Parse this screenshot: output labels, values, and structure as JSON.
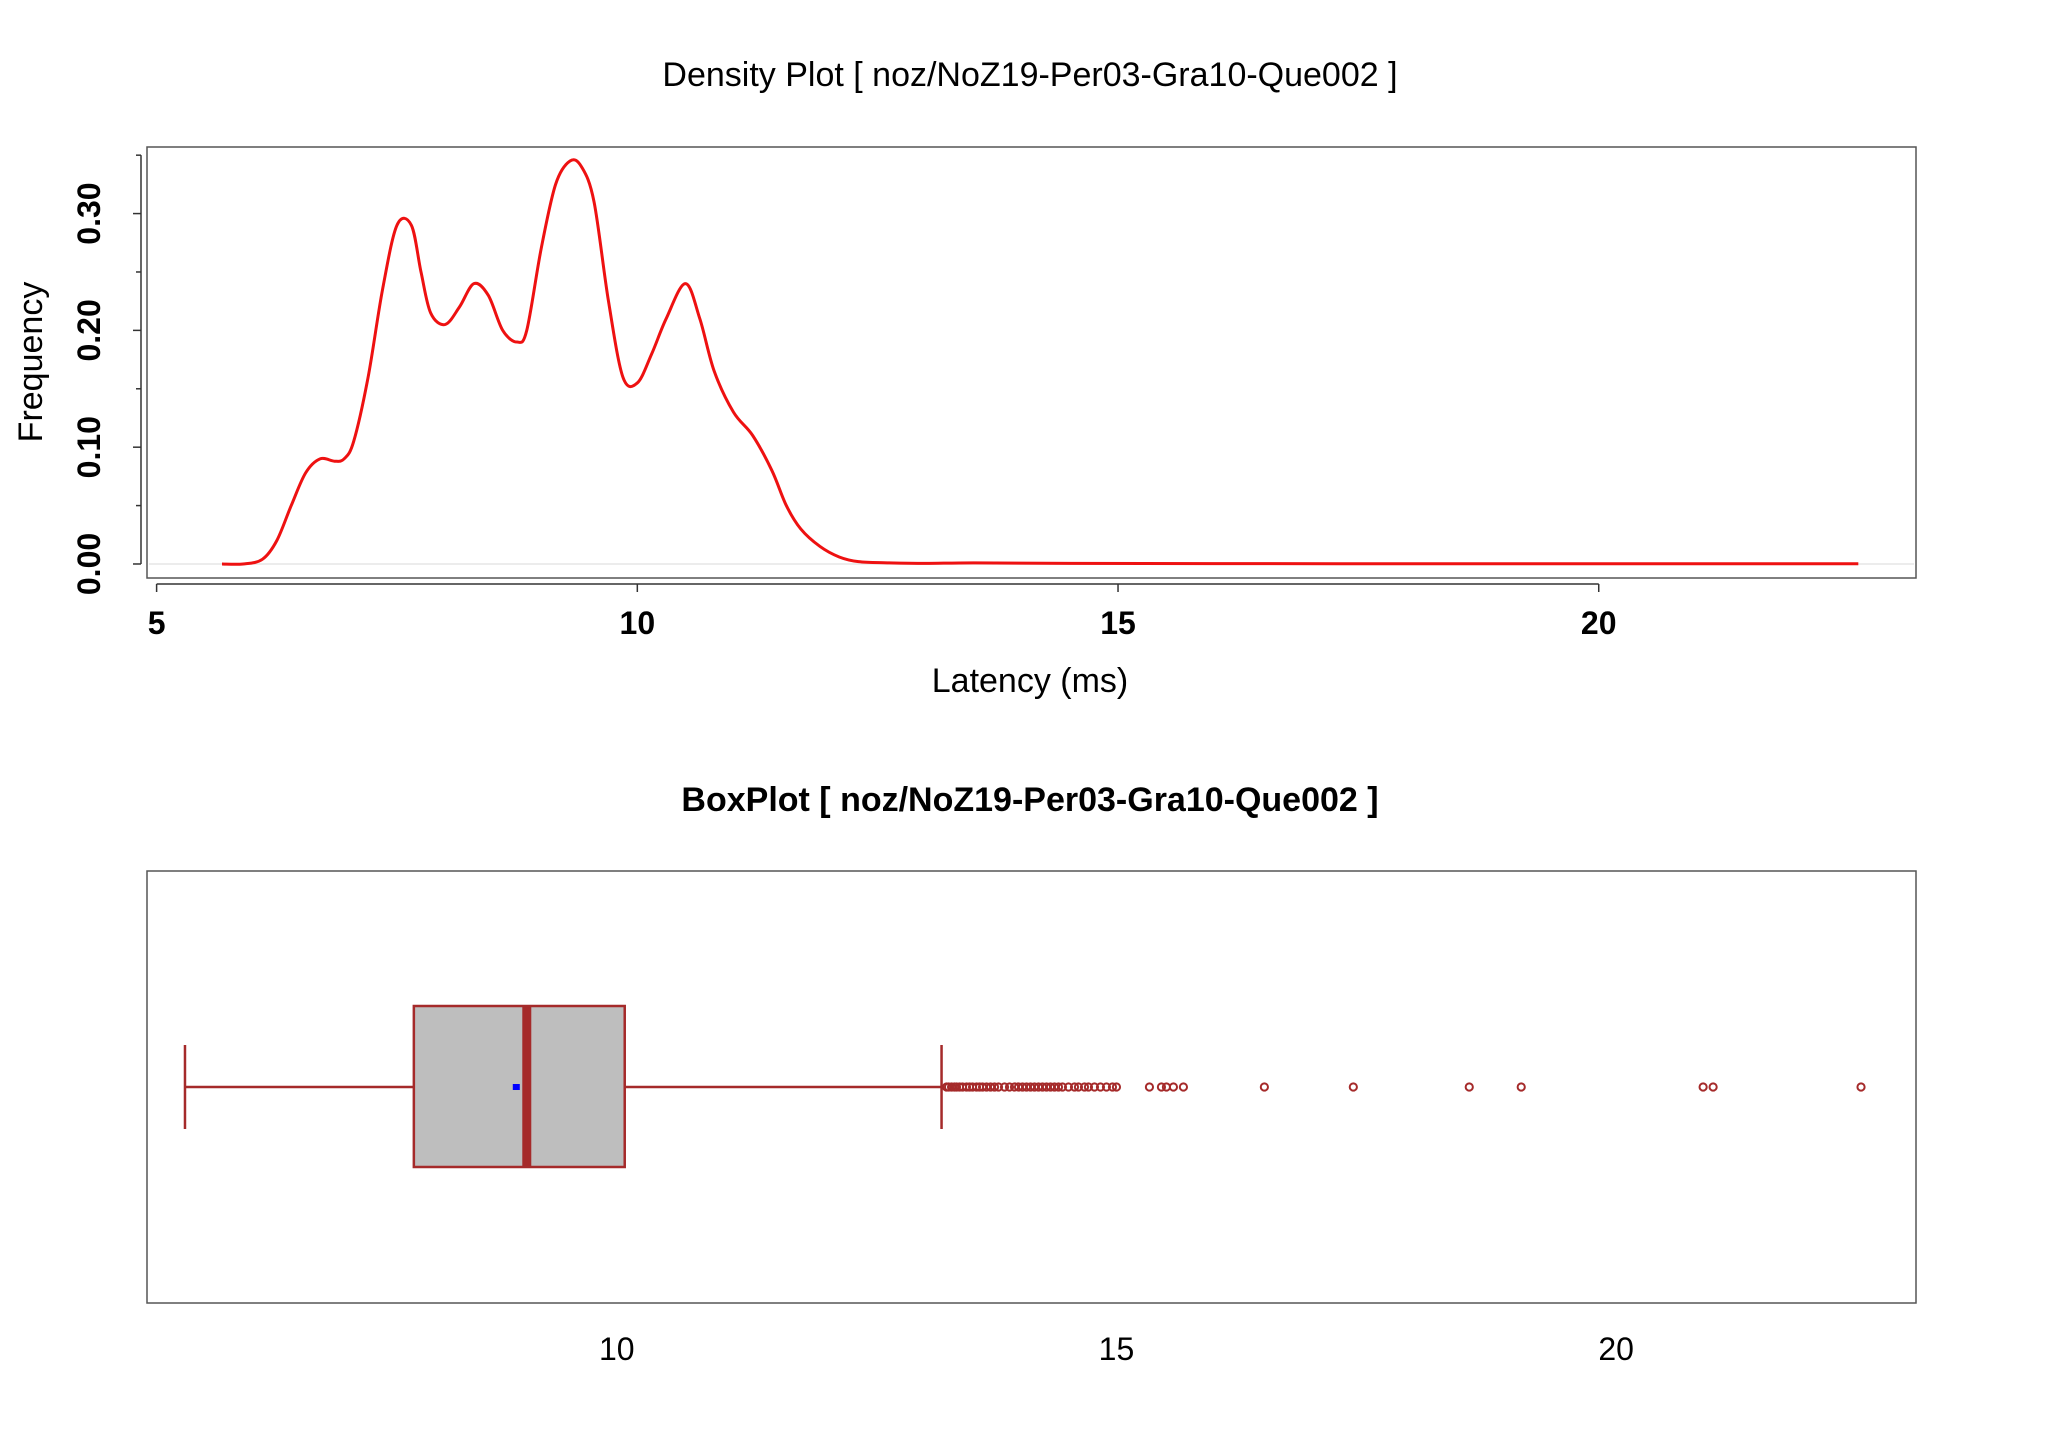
{
  "chart_data": [
    {
      "type": "line",
      "title": "Density Plot [ noz/NoZ19-Per03-Gra10-Que002 ]",
      "xlabel": "Latency (ms)",
      "ylabel": "Frequency",
      "xlim": [
        4.9,
        23.3
      ],
      "ylim": [
        -0.012,
        0.357
      ],
      "x_ticks": [
        5,
        10,
        15,
        20
      ],
      "x_tick_labels": [
        "5",
        "10",
        "15",
        "20"
      ],
      "y_ticks": [
        0,
        0.1,
        0.2,
        0.3
      ],
      "y_tick_labels": [
        "0.00",
        "0.10",
        "0.20",
        "0.30"
      ],
      "y_minor_ticks": [
        0.05,
        0.15,
        0.25,
        0.35
      ],
      "line_color": "#ee1111",
      "grid": false,
      "series": [
        {
          "x": [
            5.68,
            5.9,
            6.1,
            6.25,
            6.4,
            6.55,
            6.7,
            6.85,
            6.95,
            7.05,
            7.2,
            7.35,
            7.5,
            7.65,
            7.75,
            7.85,
            8.0,
            8.15,
            8.3,
            8.45,
            8.6,
            8.75,
            8.85,
            9.0,
            9.15,
            9.3,
            9.42,
            9.55,
            9.7,
            9.85,
            10.0,
            10.15,
            10.3,
            10.5,
            10.65,
            10.8,
            11.0,
            11.2,
            11.4,
            11.55,
            11.7,
            11.9,
            12.1,
            12.3,
            12.6,
            13.0,
            13.5,
            14.5,
            16.0,
            18.0,
            20.0,
            22.7
          ],
          "y": [
            0.0,
            0.0,
            0.004,
            0.02,
            0.05,
            0.078,
            0.09,
            0.088,
            0.09,
            0.105,
            0.16,
            0.235,
            0.29,
            0.29,
            0.25,
            0.215,
            0.205,
            0.22,
            0.24,
            0.23,
            0.2,
            0.19,
            0.2,
            0.27,
            0.325,
            0.345,
            0.34,
            0.31,
            0.225,
            0.16,
            0.155,
            0.18,
            0.21,
            0.24,
            0.21,
            0.165,
            0.13,
            0.11,
            0.08,
            0.05,
            0.03,
            0.015,
            0.006,
            0.002,
            0.001,
            0.0005,
            0.001,
            0.0005,
            0.0003,
            0.0002,
            0.0002,
            0.0002
          ]
        }
      ]
    },
    {
      "type": "box",
      "title": "BoxPlot [ noz/NoZ19-Per03-Gra10-Que002 ]",
      "xlim": [
        5.3,
        23.0
      ],
      "x_ticks": [
        10,
        15,
        20
      ],
      "x_tick_labels": [
        "10",
        "15",
        "20"
      ],
      "whisker_low": 5.68,
      "q1": 7.97,
      "median": 9.1,
      "mean": 9.0,
      "q3": 10.08,
      "whisker_high": 13.25,
      "outliers": [
        13.3,
        13.32,
        13.35,
        13.38,
        13.4,
        13.43,
        13.46,
        13.5,
        13.53,
        13.56,
        13.6,
        13.63,
        13.66,
        13.7,
        13.74,
        13.78,
        13.82,
        13.88,
        13.93,
        13.98,
        14.02,
        14.06,
        14.1,
        14.14,
        14.18,
        14.22,
        14.26,
        14.3,
        14.34,
        14.38,
        14.42,
        14.46,
        14.52,
        14.58,
        14.62,
        14.68,
        14.72,
        14.78,
        14.84,
        14.9,
        14.96,
        15.0,
        15.33,
        15.45,
        15.5,
        15.57,
        15.67,
        16.48,
        17.37,
        18.53,
        19.05,
        20.87,
        20.97,
        22.45
      ],
      "box_fill": "#bebebe",
      "box_color": "#a52a2a",
      "median_color": "#a52a2a",
      "mean_color": "#0000ff"
    }
  ]
}
